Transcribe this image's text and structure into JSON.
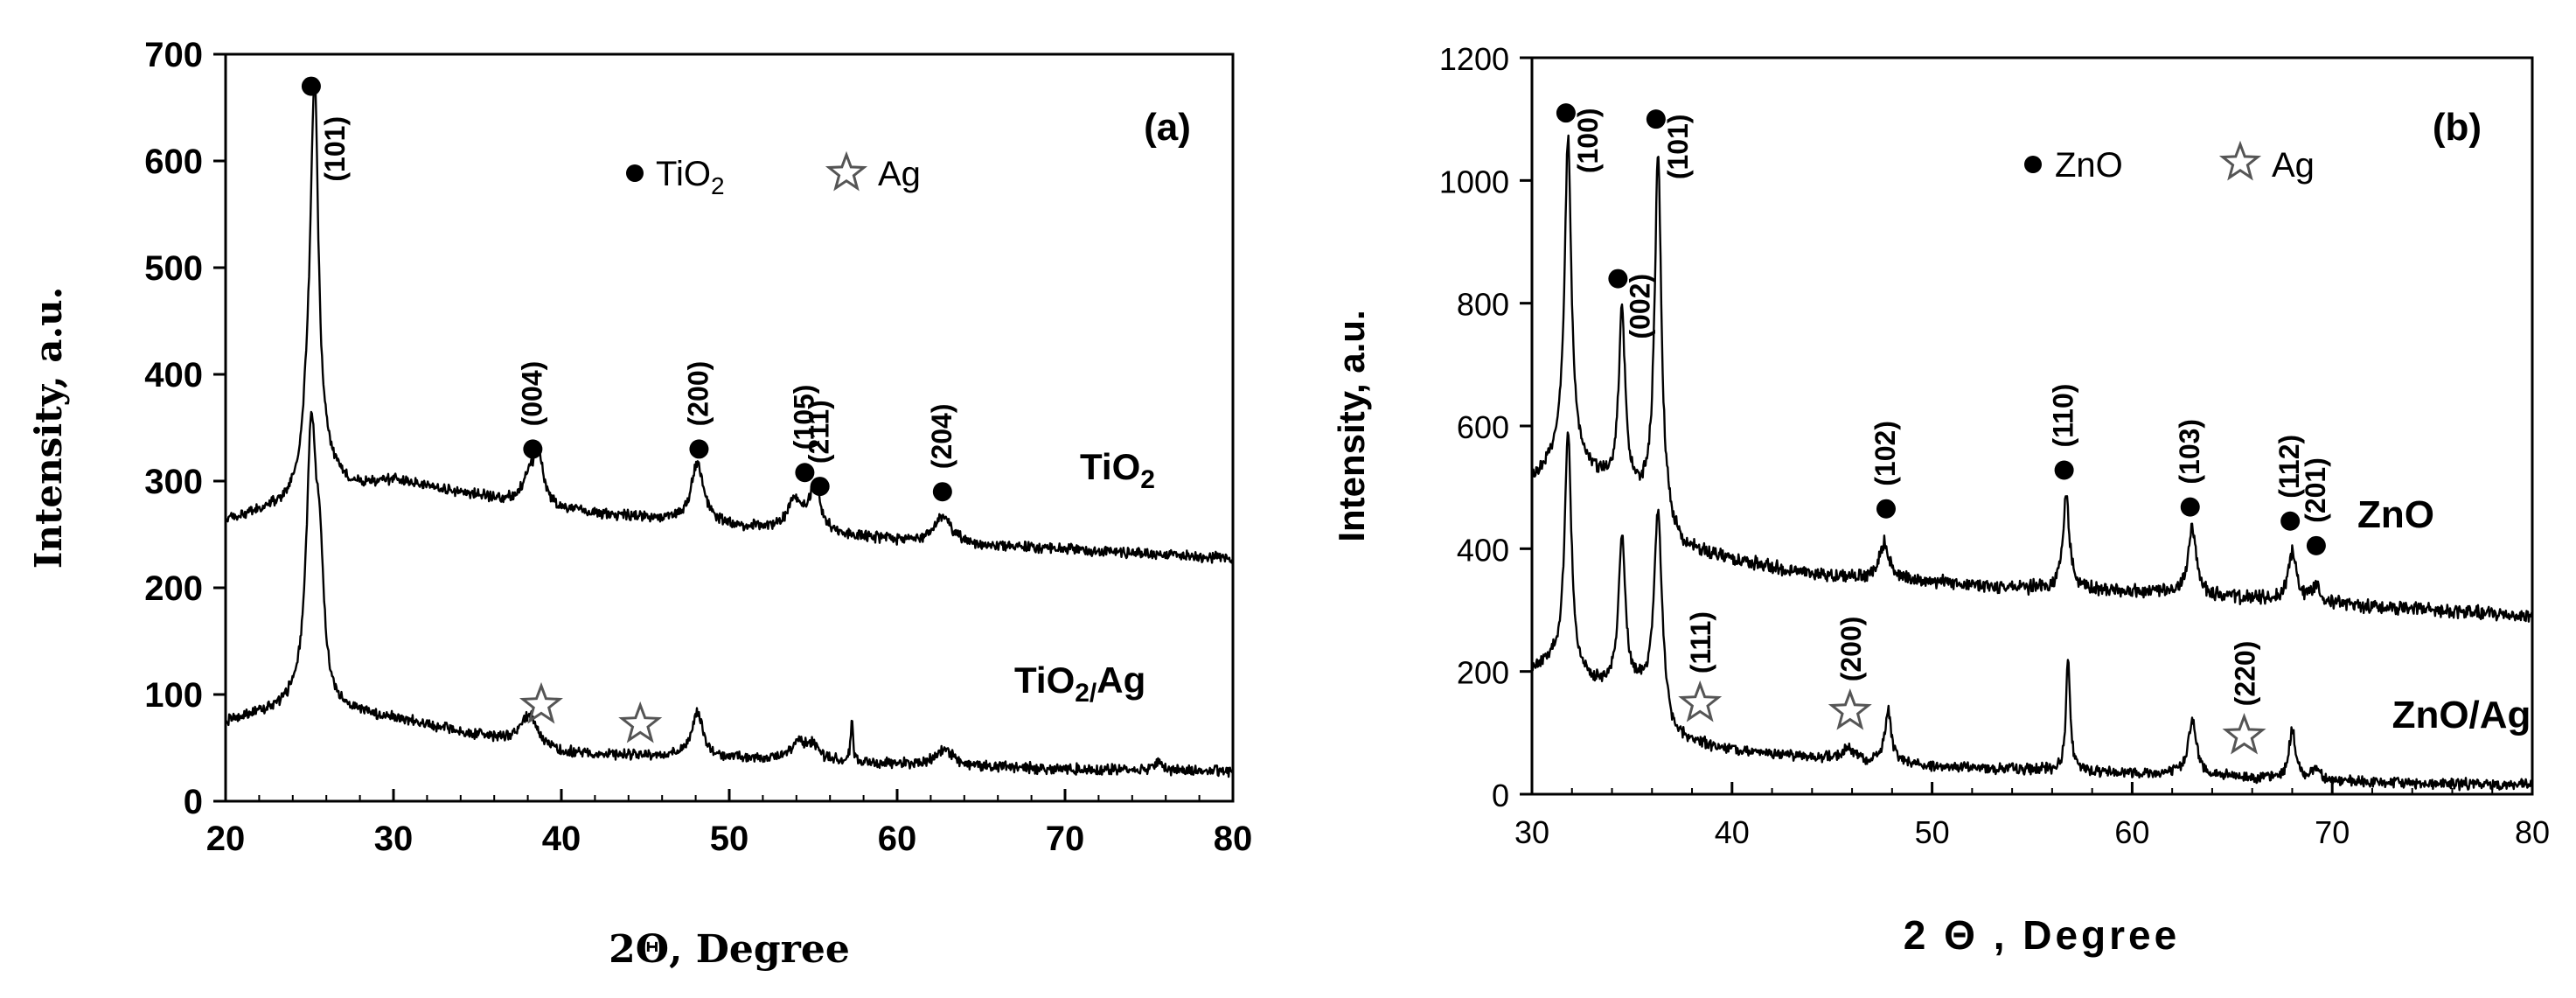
{
  "chart_data": [
    {
      "panel": "(a)",
      "type": "line",
      "xlabel": "2Θ, Degree",
      "ylabel": "Intensity, a.u.",
      "xlim": [
        20,
        80
      ],
      "ylim": [
        0,
        700
      ],
      "xticks": [
        20,
        30,
        40,
        50,
        60,
        70,
        80
      ],
      "yticks": [
        0,
        100,
        200,
        300,
        400,
        500,
        600,
        700
      ],
      "legend": [
        {
          "marker": "dot",
          "label": "TiO",
          "sub": "2"
        },
        {
          "marker": "star",
          "label": "Ag"
        }
      ],
      "series": [
        {
          "name": "TiO2",
          "label": "TiO",
          "label_sub": "2",
          "baseline": [
            [
              20,
              262
            ],
            [
              30,
              300
            ],
            [
              40,
              272
            ],
            [
              50,
              258
            ],
            [
              60,
              244
            ],
            [
              70,
              236
            ],
            [
              80,
              228
            ]
          ],
          "noise": 4,
          "peaks": [
            [
              24.9,
              55,
              0.35
            ],
            [
              25.3,
              360,
              0.28
            ],
            [
              26.0,
              22,
              0.9
            ],
            [
              38.0,
              18,
              0.4
            ],
            [
              38.6,
              48,
              0.4
            ],
            [
              48.1,
              55,
              0.45
            ],
            [
              53.9,
              28,
              0.5
            ],
            [
              55.1,
              40,
              0.45
            ],
            [
              62.7,
              25,
              0.6
            ]
          ]
        },
        {
          "name": "TiO2/Ag",
          "label": "TiO",
          "label_sub": "2/",
          "label_tail": "Ag",
          "baseline": [
            [
              20,
              74
            ],
            [
              24,
              88
            ],
            [
              30,
              78
            ],
            [
              36,
              58
            ],
            [
              40,
              45
            ],
            [
              50,
              40
            ],
            [
              60,
              35
            ],
            [
              70,
              30
            ],
            [
              80,
              28
            ]
          ],
          "noise": 4,
          "peaks": [
            [
              25.1,
              250,
              0.35
            ],
            [
              25.6,
              110,
              0.3
            ],
            [
              38.1,
              30,
              0.6
            ],
            [
              48.1,
              42,
              0.4
            ],
            [
              54.1,
              18,
              0.5
            ],
            [
              55.0,
              14,
              0.4
            ],
            [
              57.3,
              40,
              0.08
            ],
            [
              62.8,
              15,
              0.6
            ],
            [
              75.5,
              8,
              0.3
            ]
          ]
        }
      ],
      "annotations": [
        {
          "type": "dot",
          "x": 25.1,
          "y": 670,
          "label": "(101)"
        },
        {
          "type": "dot",
          "x": 38.3,
          "y": 330,
          "label": "(004)"
        },
        {
          "type": "dot",
          "x": 48.2,
          "y": 330,
          "label": "(200)"
        },
        {
          "type": "dot",
          "x": 54.5,
          "y": 308,
          "label": "(105)"
        },
        {
          "type": "dot",
          "x": 55.4,
          "y": 295,
          "label": "(211)"
        },
        {
          "type": "dot",
          "x": 62.7,
          "y": 290,
          "label": "(204)"
        },
        {
          "type": "star",
          "x": 38.8,
          "y": 90,
          "label": ""
        },
        {
          "type": "star",
          "x": 44.7,
          "y": 72,
          "label": ""
        }
      ]
    },
    {
      "panel": "(b)",
      "type": "line",
      "xlabel": "2 Θ , Degree",
      "ylabel": "Intensity, a.u.",
      "xlim": [
        30,
        80
      ],
      "ylim": [
        0,
        1200
      ],
      "xticks": [
        30,
        40,
        50,
        60,
        70,
        80
      ],
      "yticks": [
        0,
        200,
        400,
        600,
        800,
        1000,
        1200
      ],
      "legend": [
        {
          "marker": "dot",
          "label": "ZnO"
        },
        {
          "marker": "star",
          "label": "Ag"
        }
      ],
      "series": [
        {
          "name": "ZnO",
          "label": "ZnO",
          "baseline": [
            [
              30,
              510
            ],
            [
              31.5,
              555
            ],
            [
              34,
              500
            ],
            [
              36,
              470
            ],
            [
              37.5,
              400
            ],
            [
              40,
              380
            ],
            [
              45,
              355
            ],
            [
              50,
              345
            ],
            [
              55,
              335
            ],
            [
              60,
              330
            ],
            [
              65,
              320
            ],
            [
              70,
              310
            ],
            [
              80,
              290
            ]
          ],
          "noise": 9,
          "peaks": [
            [
              31.8,
              520,
              0.2
            ],
            [
              34.5,
              290,
              0.2
            ],
            [
              36.3,
              580,
              0.2
            ],
            [
              47.6,
              60,
              0.3
            ],
            [
              56.7,
              150,
              0.2
            ],
            [
              63.0,
              110,
              0.25
            ],
            [
              68.0,
              80,
              0.25
            ],
            [
              69.2,
              30,
              0.25
            ]
          ]
        },
        {
          "name": "ZnO/Ag",
          "label": "ZnO/Ag",
          "baseline": [
            [
              30,
              200
            ],
            [
              31,
              215
            ],
            [
              33,
              180
            ],
            [
              35.5,
              165
            ],
            [
              37,
              90
            ],
            [
              40,
              70
            ],
            [
              45,
              58
            ],
            [
              50,
              45
            ],
            [
              55,
              40
            ],
            [
              60,
              35
            ],
            [
              65,
              28
            ],
            [
              70,
              20
            ],
            [
              80,
              15
            ]
          ],
          "noise": 7,
          "peaks": [
            [
              31.8,
              390,
              0.2
            ],
            [
              34.5,
              250,
              0.2
            ],
            [
              36.3,
              330,
              0.25
            ],
            [
              45.8,
              20,
              0.3
            ],
            [
              47.8,
              85,
              0.2
            ],
            [
              56.8,
              190,
              0.12
            ],
            [
              63.0,
              90,
              0.25
            ],
            [
              68.0,
              80,
              0.2
            ],
            [
              69.2,
              20,
              0.3
            ]
          ]
        }
      ],
      "annotations": [
        {
          "type": "dot",
          "x": 31.7,
          "y": 1110,
          "label": "(100)"
        },
        {
          "type": "dot",
          "x": 34.3,
          "y": 840,
          "label": "(002)"
        },
        {
          "type": "dot",
          "x": 36.2,
          "y": 1100,
          "label": "(101)"
        },
        {
          "type": "dot",
          "x": 47.7,
          "y": 465,
          "label": "(102)"
        },
        {
          "type": "dot",
          "x": 56.6,
          "y": 528,
          "label": "(110)"
        },
        {
          "type": "dot",
          "x": 62.9,
          "y": 468,
          "label": "(103)"
        },
        {
          "type": "dot",
          "x": 67.9,
          "y": 445,
          "label": "(112)"
        },
        {
          "type": "dot",
          "x": 69.2,
          "y": 405,
          "label": "(201)"
        },
        {
          "type": "star",
          "x": 38.4,
          "y": 148,
          "label": "(111)"
        },
        {
          "type": "star",
          "x": 45.9,
          "y": 135,
          "label": "(200)"
        },
        {
          "type": "star",
          "x": 65.6,
          "y": 95,
          "label": "(220)"
        }
      ]
    }
  ]
}
